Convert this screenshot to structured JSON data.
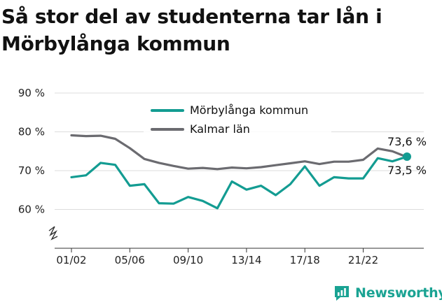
{
  "title": "Så stor del av studenterna tar lån i Mörbylånga kommun",
  "brand": {
    "name": "Newsworthy",
    "icon": "newsworthy-logo-icon"
  },
  "colors": {
    "primary": "#139c92",
    "secondary": "#6b6b70",
    "grid": "#dddddd",
    "axis": "#333333"
  },
  "chart_data": {
    "type": "line",
    "x": [
      "01/02",
      "02/03",
      "03/04",
      "04/05",
      "05/06",
      "06/07",
      "07/08",
      "08/09",
      "09/10",
      "10/11",
      "11/12",
      "12/13",
      "13/14",
      "14/15",
      "15/16",
      "16/17",
      "17/18",
      "18/19",
      "19/20",
      "20/21",
      "21/22",
      "22/23",
      "23/24",
      "24/25"
    ],
    "tick_labels": [
      "01/02",
      "05/06",
      "09/10",
      "13/14",
      "17/18",
      "21/22"
    ],
    "y_ticks": [
      "60 %",
      "70 %",
      "80 %",
      "90 %"
    ],
    "ylim": [
      50,
      90
    ],
    "axis_break": true,
    "legend_position": "top-center",
    "series": [
      {
        "name": "Mörbylånga kommun",
        "color": "#139c92",
        "values": [
          68.3,
          68.8,
          72,
          71.5,
          66.1,
          66.5,
          61.6,
          61.5,
          63.2,
          62.2,
          60.3,
          67.2,
          65.1,
          66.1,
          63.7,
          66.5,
          71.1,
          66.1,
          68.3,
          68,
          68,
          73.2,
          72.4,
          73.6
        ],
        "end_label": "73,6 %"
      },
      {
        "name": "Kalmar län",
        "color": "#6b6b70",
        "values": [
          79.1,
          78.9,
          79,
          78.2,
          75.8,
          73,
          72,
          71.2,
          70.5,
          70.7,
          70.4,
          70.8,
          70.6,
          70.9,
          71.4,
          71.9,
          72.4,
          71.7,
          72.3,
          72.3,
          72.8,
          75.7,
          75,
          73.5
        ],
        "end_label": "73,5 %"
      }
    ]
  }
}
